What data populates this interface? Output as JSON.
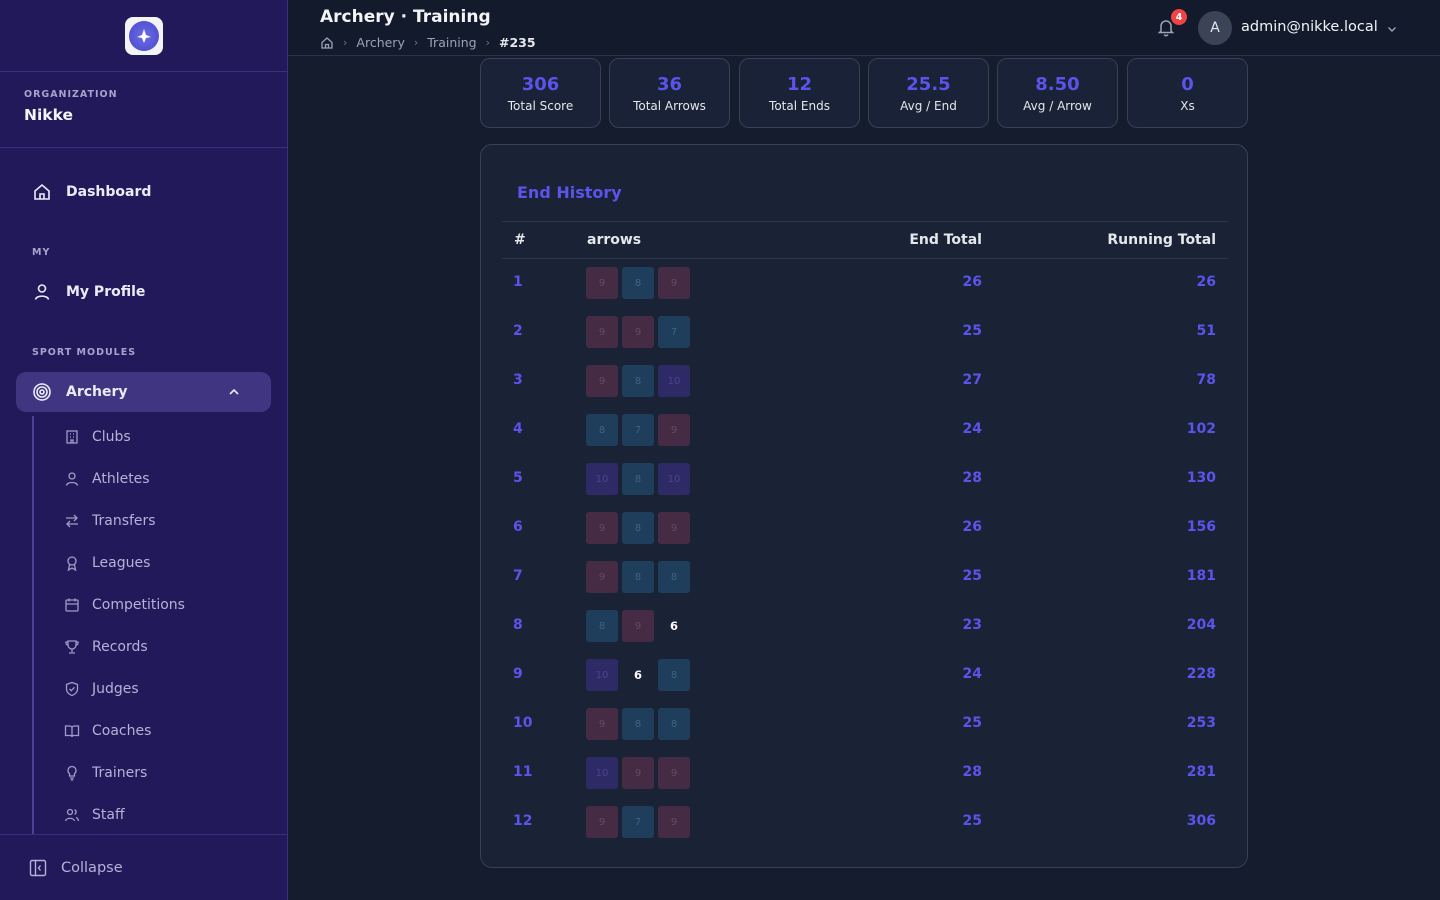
{
  "sidebar": {
    "org_label": "ORGANIZATION",
    "org_name": "Nikke",
    "dashboard": "Dashboard",
    "section_my": "MY",
    "my_profile": "My Profile",
    "section_sport": "SPORT MODULES",
    "archery": "Archery",
    "sub_items": [
      "Clubs",
      "Athletes",
      "Transfers",
      "Leagues",
      "Competitions",
      "Records",
      "Judges",
      "Coaches",
      "Trainers",
      "Staff"
    ],
    "collapse": "Collapse"
  },
  "header": {
    "title": "Archery · Training",
    "breadcrumb": [
      "Archery",
      "Training",
      "#235"
    ],
    "notification_count": "4",
    "avatar_initial": "A",
    "user_email": "admin@nikke.local"
  },
  "stats": [
    {
      "value": "306",
      "label": "Total Score"
    },
    {
      "value": "36",
      "label": "Total Arrows"
    },
    {
      "value": "12",
      "label": "Total Ends"
    },
    {
      "value": "25.5",
      "label": "Avg / End"
    },
    {
      "value": "8.50",
      "label": "Avg / Arrow"
    },
    {
      "value": "0",
      "label": "Xs"
    }
  ],
  "end_history": {
    "title": "End History",
    "columns": {
      "num": "#",
      "arrows": "arrows",
      "end_total": "End Total",
      "running_total": "Running Total"
    },
    "rows": [
      {
        "num": "1",
        "arrows": [
          "9",
          "8",
          "9"
        ],
        "end_total": "26",
        "running_total": "26"
      },
      {
        "num": "2",
        "arrows": [
          "9",
          "9",
          "7"
        ],
        "end_total": "25",
        "running_total": "51"
      },
      {
        "num": "3",
        "arrows": [
          "9",
          "8",
          "10"
        ],
        "end_total": "27",
        "running_total": "78"
      },
      {
        "num": "4",
        "arrows": [
          "8",
          "7",
          "9"
        ],
        "end_total": "24",
        "running_total": "102"
      },
      {
        "num": "5",
        "arrows": [
          "10",
          "8",
          "10"
        ],
        "end_total": "28",
        "running_total": "130"
      },
      {
        "num": "6",
        "arrows": [
          "9",
          "8",
          "9"
        ],
        "end_total": "26",
        "running_total": "156"
      },
      {
        "num": "7",
        "arrows": [
          "9",
          "8",
          "8"
        ],
        "end_total": "25",
        "running_total": "181"
      },
      {
        "num": "8",
        "arrows": [
          "8",
          "9",
          "6"
        ],
        "end_total": "23",
        "running_total": "204"
      },
      {
        "num": "9",
        "arrows": [
          "10",
          "6",
          "8"
        ],
        "end_total": "24",
        "running_total": "228"
      },
      {
        "num": "10",
        "arrows": [
          "9",
          "8",
          "8"
        ],
        "end_total": "25",
        "running_total": "253"
      },
      {
        "num": "11",
        "arrows": [
          "10",
          "9",
          "9"
        ],
        "end_total": "28",
        "running_total": "281"
      },
      {
        "num": "12",
        "arrows": [
          "9",
          "7",
          "9"
        ],
        "end_total": "25",
        "running_total": "306"
      }
    ]
  },
  "colors": {
    "accent": "#5b54ea",
    "sidebar_bg": "#22195a",
    "page_bg": "#141c2e",
    "score_9_chip": "#452c44",
    "score_7_8_chip": "#1e3e5c",
    "score_10_chip": "#2e2a66"
  },
  "icons": {
    "logo": "archery-logo",
    "dashboard": "home-icon",
    "profile": "user-icon",
    "archery": "target-icon",
    "notification": "bell-icon",
    "collapse": "sidebar-collapse-icon"
  }
}
